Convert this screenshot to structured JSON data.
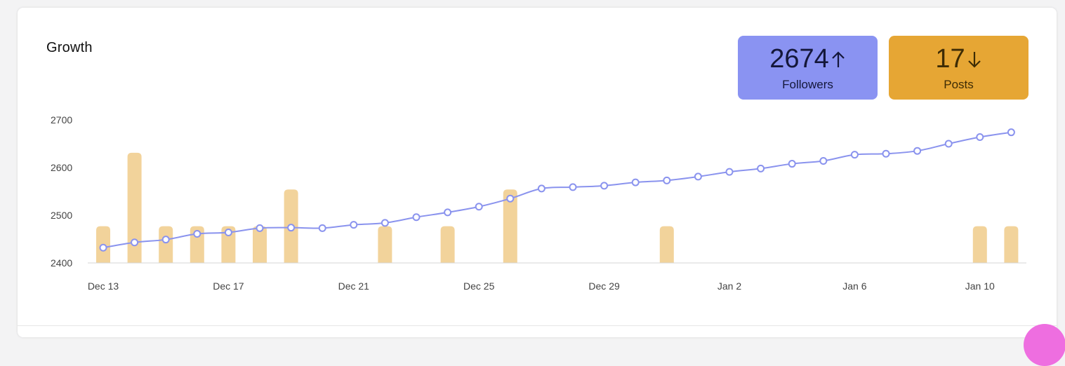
{
  "card": {
    "title": "Growth"
  },
  "stats": {
    "followers": {
      "value": "2674",
      "label": "Followers",
      "trend": "up",
      "color": "#8a93f2"
    },
    "posts": {
      "value": "17",
      "label": "Posts",
      "trend": "down",
      "color": "#e6a634"
    }
  },
  "chart_data": {
    "type": "bar+line",
    "title": "",
    "xlabel": "",
    "ylabel": "",
    "ylim": [
      2400,
      2700
    ],
    "yticks": [
      2400,
      2500,
      2600,
      2700
    ],
    "grid": false,
    "x": [
      "Dec 13",
      "Dec 14",
      "Dec 15",
      "Dec 16",
      "Dec 17",
      "Dec 18",
      "Dec 19",
      "Dec 20",
      "Dec 21",
      "Dec 22",
      "Dec 23",
      "Dec 24",
      "Dec 25",
      "Dec 26",
      "Dec 27",
      "Dec 28",
      "Dec 29",
      "Dec 30",
      "Dec 31",
      "Jan 1",
      "Jan 2",
      "Jan 3",
      "Jan 4",
      "Jan 5",
      "Jan 6",
      "Jan 7",
      "Jan 8",
      "Jan 9",
      "Jan 10",
      "Jan 11"
    ],
    "xtick_labels": [
      {
        "label": "Dec 13",
        "index": 0
      },
      {
        "label": "Dec 17",
        "index": 4
      },
      {
        "label": "Dec 21",
        "index": 8
      },
      {
        "label": "Dec 25",
        "index": 12
      },
      {
        "label": "Dec 29",
        "index": 16
      },
      {
        "label": "Jan 2",
        "index": 20
      },
      {
        "label": "Jan 6",
        "index": 24
      },
      {
        "label": "Jan 10",
        "index": 28
      }
    ],
    "series": [
      {
        "type": "bar",
        "color": "#f2d39b",
        "values": [
          1,
          3,
          1,
          1,
          1,
          1,
          2,
          0,
          0,
          1,
          0,
          1,
          0,
          2,
          0,
          0,
          0,
          0,
          1,
          0,
          0,
          0,
          0,
          0,
          0,
          0,
          0,
          0,
          1,
          1
        ],
        "bar_scale": {
          "count_unit": 1,
          "value_per_count": 77
        }
      },
      {
        "type": "line",
        "color": "#8a93ee",
        "values": [
          2432,
          2443,
          2449,
          2461,
          2464,
          2473,
          2474,
          2473,
          2480,
          2484,
          2496,
          2506,
          2518,
          2535,
          2556,
          2559,
          2562,
          2569,
          2573,
          2581,
          2591,
          2598,
          2608,
          2614,
          2627,
          2629,
          2635,
          2650,
          2664,
          2674
        ]
      }
    ]
  }
}
